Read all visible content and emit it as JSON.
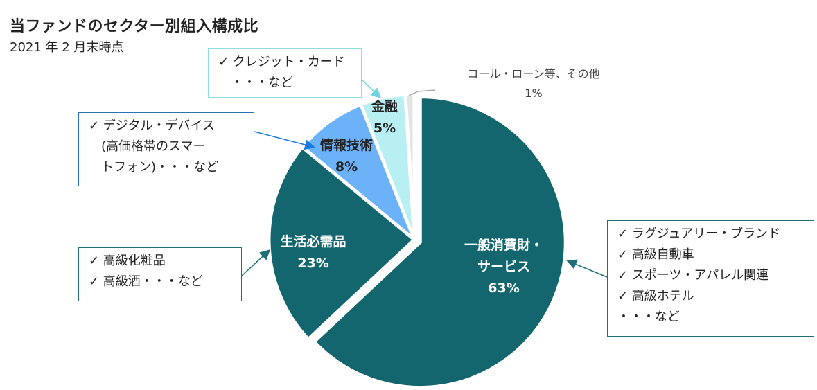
{
  "chart_data": {
    "type": "pie",
    "title": "当ファンドのセクター別組入構成比",
    "subtitle": "2021 年 2 月末時点",
    "slices": [
      {
        "label": "一般消費財・サービス",
        "label_lines": [
          "一般消費財・",
          "サービス"
        ],
        "value": 63,
        "value_label": "63%",
        "color": "#13666e",
        "text_color": "#ffffff",
        "exploded": true
      },
      {
        "label": "生活必需品",
        "label_lines": [
          "生活必需品"
        ],
        "value": 23,
        "value_label": "23%",
        "color": "#13666e",
        "text_color": "#ffffff"
      },
      {
        "label": "情報技術",
        "label_lines": [
          "情報技術"
        ],
        "value": 8,
        "value_label": "8%",
        "color": "#6cb2f8",
        "text_color": "#222222"
      },
      {
        "label": "金融",
        "label_lines": [
          "金融"
        ],
        "value": 5,
        "value_label": "5%",
        "color": "#b8eff3",
        "text_color": "#222222"
      },
      {
        "label": "コール・ローン等、その他",
        "label_lines": [
          "コール・ローン等、その他"
        ],
        "value": 1,
        "value_label": "1%",
        "color": "#e4e4e4",
        "text_color": "#444444"
      }
    ]
  },
  "callouts": {
    "finance": {
      "border": "#8fdde4",
      "lines": [
        "✓  クレジット・カード",
        "　・・・など"
      ]
    },
    "it": {
      "border": "#2a72b8",
      "lines": [
        "✓  デジタル・デバイス",
        "　(高価格帯のスマー",
        "　トフォン)・・・など"
      ]
    },
    "staples": {
      "border": "#1f6f76",
      "lines": [
        "✓  高級化粧品",
        "✓  高級酒・・・など"
      ]
    },
    "discretionary": {
      "border": "#1f6f76",
      "lines": [
        "✓  ラグジュアリー・ブランド",
        "✓  高級自動車",
        "✓  スポーツ・アパレル関連",
        "✓  高級ホテル",
        "・・・など"
      ]
    }
  }
}
